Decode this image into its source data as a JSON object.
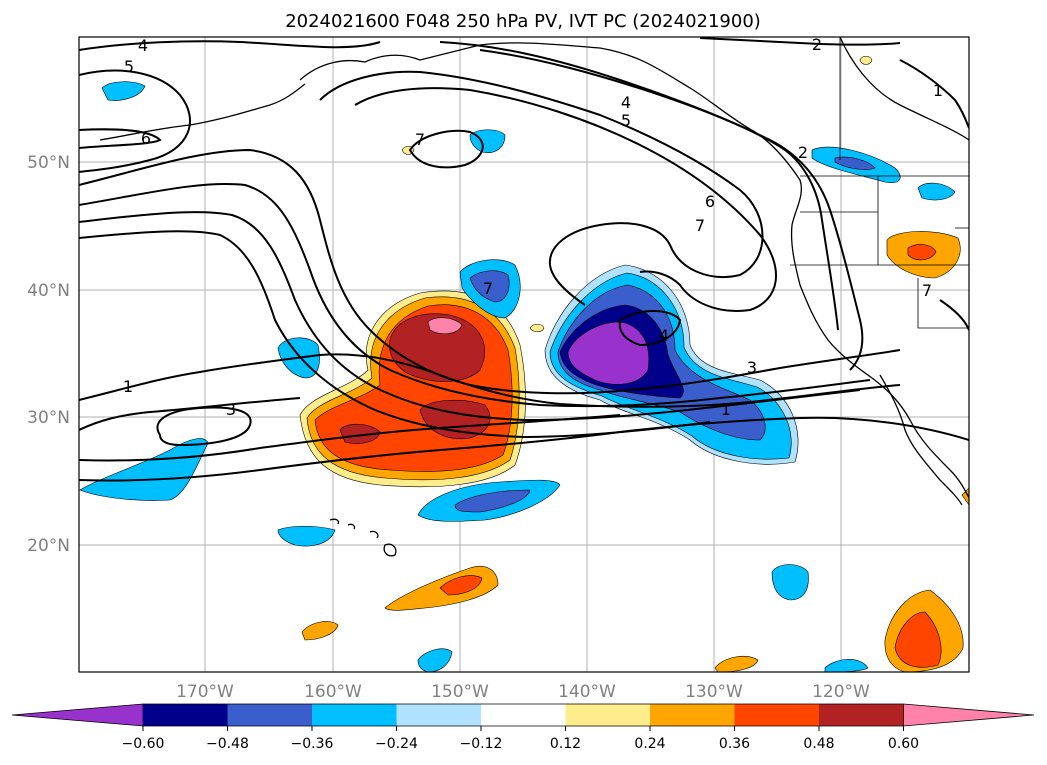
{
  "title": "2024021600 F048 250 hPa PV, IVT PC (2024021900)",
  "lat_ticks": [
    "50°N",
    "40°N",
    "30°N",
    "20°N"
  ],
  "lon_ticks": [
    "170°W",
    "160°W",
    "150°W",
    "140°W",
    "130°W",
    "120°W"
  ],
  "colorbar": {
    "colors": [
      "#9932cc",
      "#00008b",
      "#3a5fcd",
      "#00bfff",
      "#b0e2ff",
      "#ffffff",
      "#ffec8b",
      "#ffa500",
      "#ff4500",
      "#b22222",
      "#ff82ab"
    ],
    "tick_labels": [
      "−0.60",
      "−0.48",
      "−0.36",
      "−0.24",
      "−0.12",
      "0.12",
      "0.24",
      "0.36",
      "0.48",
      "0.60"
    ]
  },
  "contour_labels": {
    "c4_top": "4",
    "c5_left": "5",
    "c6_left": "6",
    "c2_top": "2",
    "c1_right": "1",
    "c7_north": "7",
    "c4_mid": "4",
    "c5_mid": "5",
    "c2_coast": "2",
    "c6_mid": "6",
    "c7_mid": "7",
    "c7_center": "7",
    "c4_low": "4",
    "c3_east": "3",
    "c1_left": "1",
    "c3_left": "3",
    "c1_east": "1",
    "c7_east": "7"
  }
}
